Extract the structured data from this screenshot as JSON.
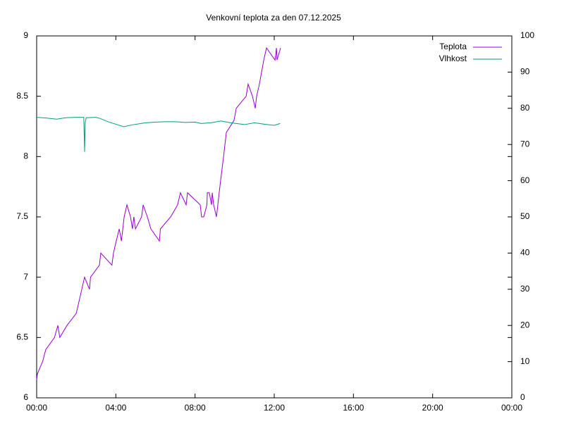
{
  "chart_data": {
    "type": "line",
    "title": "Venkovní teplota za den 07.12.2025",
    "xlim": [
      0,
      24
    ],
    "xticks": [
      {
        "value": 0,
        "label": "00:00"
      },
      {
        "value": 4,
        "label": "04:00"
      },
      {
        "value": 8,
        "label": "08:00"
      },
      {
        "value": 12,
        "label": "12:00"
      },
      {
        "value": 16,
        "label": "16:00"
      },
      {
        "value": 20,
        "label": "20:00"
      },
      {
        "value": 24,
        "label": "00:00"
      }
    ],
    "ylim": [
      6,
      9
    ],
    "yticks": [
      6,
      6.5,
      7,
      7.5,
      8,
      8.5,
      9
    ],
    "y2lim": [
      0,
      100
    ],
    "y2ticks": [
      0,
      10,
      20,
      30,
      40,
      50,
      60,
      70,
      80,
      90,
      100
    ],
    "legend": "top-right",
    "series": [
      {
        "name": "Teplota",
        "color": "#9400d3",
        "x": [
          0,
          0.04,
          0.3,
          0.46,
          0.9,
          1.07,
          1.17,
          1.53,
          2.0,
          2.14,
          2.28,
          2.42,
          2.67,
          2.72,
          3.17,
          3.24,
          3.8,
          3.88,
          4.02,
          4.17,
          4.28,
          4.35,
          4.42,
          4.56,
          4.74,
          4.84,
          4.91,
          4.99,
          5.3,
          5.38,
          5.59,
          5.77,
          6.2,
          6.25,
          6.77,
          7.12,
          7.26,
          7.55,
          7.62,
          8.26,
          8.33,
          8.44,
          8.6,
          8.62,
          8.72,
          8.83,
          8.87,
          8.94,
          9.08,
          9.15,
          9.29,
          9.44,
          9.58,
          9.97,
          10.08,
          10.58,
          10.68,
          10.9,
          11.04,
          11.11,
          11.25,
          11.36,
          11.47,
          11.61,
          12.04,
          12.11,
          12.14,
          12.32
        ],
        "values": [
          6.15,
          6.2,
          6.3,
          6.4,
          6.5,
          6.6,
          6.5,
          6.6,
          6.7,
          6.8,
          6.9,
          7.0,
          6.9,
          7.0,
          7.1,
          7.2,
          7.1,
          7.2,
          7.3,
          7.4,
          7.3,
          7.4,
          7.5,
          7.6,
          7.5,
          7.4,
          7.5,
          7.4,
          7.5,
          7.6,
          7.5,
          7.4,
          7.3,
          7.4,
          7.5,
          7.6,
          7.7,
          7.6,
          7.7,
          7.6,
          7.5,
          7.5,
          7.6,
          7.7,
          7.7,
          7.6,
          7.7,
          7.6,
          7.5,
          7.6,
          7.8,
          8.0,
          8.2,
          8.3,
          8.4,
          8.5,
          8.6,
          8.5,
          8.4,
          8.5,
          8.6,
          8.7,
          8.8,
          8.9,
          8.8,
          8.9,
          8.8,
          8.9
        ]
      },
      {
        "name": "Vlhkost",
        "color": "#009e73",
        "axis": "y2",
        "x": [
          0,
          0.5,
          1.0,
          1.5,
          2.0,
          2.38,
          2.42,
          2.45,
          2.5,
          3.0,
          3.2,
          3.6,
          4.0,
          4.4,
          4.8,
          5.5,
          6.0,
          6.5,
          7.0,
          7.5,
          8.0,
          8.3,
          8.8,
          9.3,
          9.8,
          10.5,
          11.0,
          11.5,
          12.0,
          12.3
        ],
        "values": [
          77.5,
          77.3,
          77.0,
          77.4,
          77.5,
          77.5,
          68,
          76,
          77.4,
          77.5,
          77.2,
          76.3,
          75.6,
          74.9,
          75.4,
          76.0,
          76.2,
          76.3,
          76.3,
          76.1,
          76.2,
          75.8,
          76.0,
          76.5,
          76.0,
          75.5,
          76.0,
          75.6,
          75.3,
          75.8
        ]
      }
    ]
  }
}
